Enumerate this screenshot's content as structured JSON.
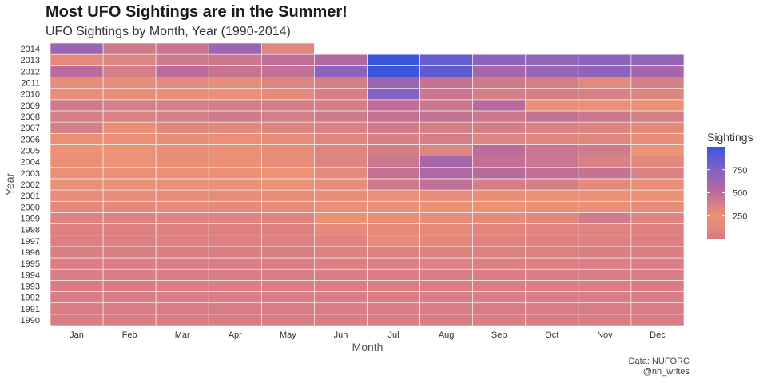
{
  "title": "Most UFO Sightings are in the Summer!",
  "subtitle": "UFO Sightings by Month, Year (1990-2014)",
  "caption": {
    "line1": "Data: NUFORC",
    "line2": "@nh_writes"
  },
  "chart_data": {
    "type": "heatmap",
    "xlabel": "Month",
    "ylabel": "Year",
    "legend": {
      "title": "Sightings",
      "ticks": [
        250,
        500,
        750
      ],
      "min": 0,
      "max": 1000,
      "position": "right"
    },
    "colors": {
      "low": "#d97b85",
      "mid1": "#ed9275",
      "mid2": "#bc6b9a",
      "mid3": "#8362c3",
      "high": "#3c55dd"
    },
    "months": [
      "Jan",
      "Feb",
      "Mar",
      "Apr",
      "May",
      "Jun",
      "Jul",
      "Aug",
      "Sep",
      "Oct",
      "Nov",
      "Dec"
    ],
    "years": [
      "1990",
      "1991",
      "1992",
      "1993",
      "1994",
      "1995",
      "1996",
      "1997",
      "1998",
      "1999",
      "2000",
      "2001",
      "2002",
      "2003",
      "2004",
      "2005",
      "2006",
      "2007",
      "2008",
      "2009",
      "2010",
      "2011",
      "2012",
      "2013",
      "2014"
    ],
    "values": [
      [
        10,
        10,
        12,
        12,
        12,
        15,
        18,
        15,
        12,
        15,
        12,
        10
      ],
      [
        12,
        12,
        15,
        15,
        15,
        18,
        20,
        18,
        15,
        18,
        15,
        12
      ],
      [
        15,
        15,
        18,
        18,
        18,
        22,
        25,
        22,
        18,
        22,
        18,
        15
      ],
      [
        15,
        15,
        18,
        18,
        20,
        25,
        28,
        25,
        20,
        25,
        20,
        15
      ],
      [
        18,
        18,
        20,
        20,
        22,
        30,
        35,
        30,
        25,
        28,
        22,
        18
      ],
      [
        25,
        25,
        28,
        28,
        30,
        40,
        50,
        60,
        40,
        40,
        35,
        25
      ],
      [
        30,
        30,
        35,
        35,
        40,
        60,
        70,
        60,
        50,
        50,
        45,
        35
      ],
      [
        40,
        40,
        60,
        50,
        50,
        100,
        170,
        130,
        80,
        70,
        60,
        45
      ],
      [
        50,
        50,
        60,
        60,
        60,
        160,
        150,
        150,
        130,
        100,
        90,
        60
      ],
      [
        60,
        70,
        80,
        80,
        90,
        220,
        200,
        180,
        150,
        130,
        400,
        90
      ],
      [
        150,
        150,
        170,
        160,
        180,
        260,
        270,
        250,
        250,
        220,
        220,
        180
      ],
      [
        170,
        170,
        180,
        170,
        200,
        280,
        260,
        280,
        270,
        260,
        260,
        240
      ],
      [
        220,
        220,
        230,
        220,
        240,
        280,
        400,
        470,
        380,
        380,
        300,
        270
      ],
      [
        230,
        230,
        240,
        240,
        250,
        300,
        450,
        560,
        520,
        480,
        450,
        350
      ],
      [
        230,
        240,
        270,
        260,
        280,
        330,
        420,
        600,
        470,
        430,
        350,
        300
      ],
      [
        250,
        250,
        270,
        260,
        280,
        330,
        380,
        330,
        500,
        430,
        400,
        250
      ],
      [
        220,
        230,
        270,
        260,
        280,
        320,
        360,
        380,
        330,
        320,
        320,
        280
      ],
      [
        380,
        270,
        320,
        310,
        330,
        350,
        400,
        380,
        380,
        350,
        340,
        300
      ],
      [
        380,
        350,
        380,
        400,
        380,
        400,
        460,
        450,
        420,
        460,
        420,
        380
      ],
      [
        400,
        380,
        370,
        380,
        380,
        380,
        480,
        420,
        520,
        270,
        260,
        260
      ],
      [
        280,
        280,
        270,
        260,
        300,
        370,
        750,
        430,
        380,
        370,
        360,
        330
      ],
      [
        280,
        280,
        300,
        280,
        330,
        380,
        650,
        450,
        400,
        380,
        300,
        370
      ],
      [
        500,
        380,
        500,
        450,
        470,
        700,
        1000,
        880,
        600,
        650,
        700,
        600
      ],
      [
        300,
        330,
        400,
        420,
        480,
        550,
        1000,
        850,
        700,
        680,
        700,
        680
      ],
      [
        650,
        400,
        430,
        650,
        320,
        null,
        null,
        null,
        null,
        null,
        null,
        null
      ]
    ]
  }
}
